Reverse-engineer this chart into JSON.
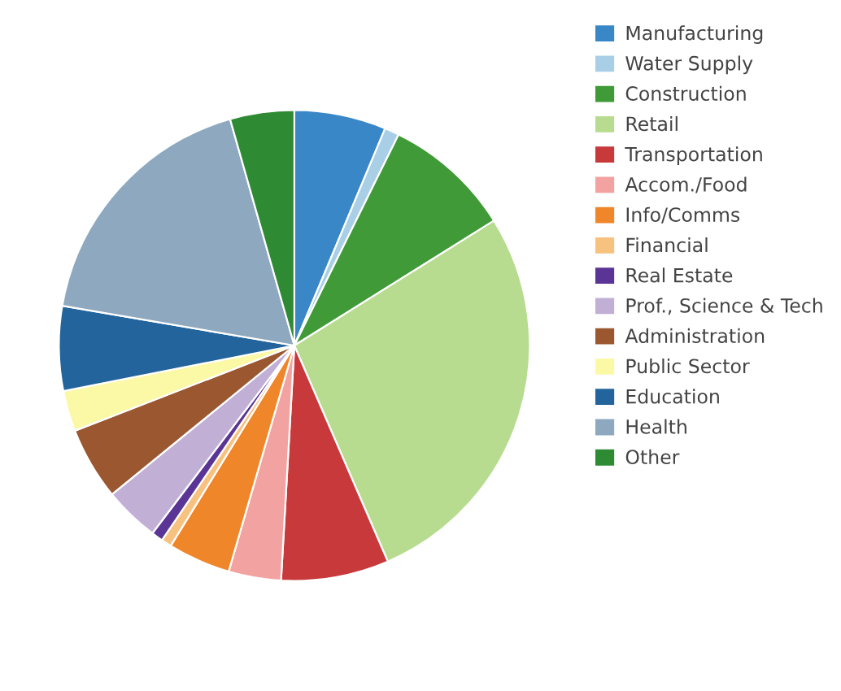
{
  "chart_data": {
    "type": "pie",
    "categories": [
      "Manufacturing",
      "Water Supply",
      "Construction",
      "Retail",
      "Transportation",
      "Accom./Food",
      "Info/Comms",
      "Financial",
      "Real Estate",
      "Prof., Science & Tech",
      "Administration",
      "Public Sector",
      "Education",
      "Health",
      "Other"
    ],
    "values": [
      6.3,
      1,
      8.8,
      27.4,
      7.4,
      3.6,
      4.3,
      0.7,
      0.8,
      3.8,
      5,
      2.8,
      5.8,
      17.9,
      4.4
    ],
    "colors": [
      "#3a87c8",
      "#a9cfe6",
      "#3f9a37",
      "#b7dc8f",
      "#c8393b",
      "#f2a2a0",
      "#f0862a",
      "#f7c27f",
      "#5a3596",
      "#c2afd6",
      "#9a5730",
      "#fbf9a6",
      "#23649c",
      "#8ea9bf",
      "#2f8a34"
    ],
    "legend": "top right"
  }
}
